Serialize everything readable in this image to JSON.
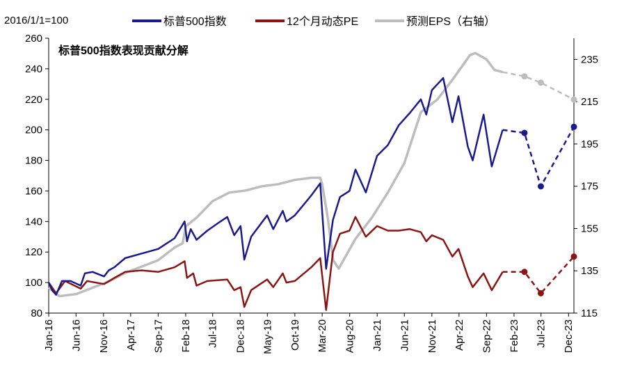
{
  "chart_data": {
    "type": "line",
    "title": "标普500指数表现贡献分解",
    "note": "2016/1/1=100",
    "x_ticks": [
      "Jan-16",
      "Jun-16",
      "Nov-16",
      "Apr-17",
      "Sep-17",
      "Feb-18",
      "Jul-18",
      "Dec-18",
      "May-19",
      "Oct-19",
      "Mar-20",
      "Aug-20",
      "Jan-21",
      "Jun-21",
      "Nov-21",
      "Apr-22",
      "Sep-22",
      "Feb-23",
      "Jul-23",
      "Dec-23"
    ],
    "y_left": {
      "min": 80,
      "max": 260,
      "ticks": [
        80,
        100,
        120,
        140,
        160,
        180,
        200,
        220,
        240,
        260
      ]
    },
    "y_right": {
      "min": 115,
      "max": 245,
      "ticks": [
        115,
        135,
        155,
        175,
        195,
        215,
        235
      ]
    },
    "colors": {
      "sp500": "#1a1a8c",
      "pe": "#8b1414",
      "eps": "#bdbdbd"
    },
    "series": [
      {
        "name": "标普500指数",
        "axis": "left",
        "color": "#1a1a8c",
        "actual": [
          [
            "2016-01-01",
            100
          ],
          [
            "2016-01-20",
            95
          ],
          [
            "2016-02-11",
            92
          ],
          [
            "2016-03-15",
            101
          ],
          [
            "2016-05-01",
            101
          ],
          [
            "2016-06-27",
            98
          ],
          [
            "2016-07-20",
            106
          ],
          [
            "2016-09-01",
            107
          ],
          [
            "2016-11-04",
            104
          ],
          [
            "2016-11-30",
            108
          ],
          [
            "2016-12-31",
            110
          ],
          [
            "2017-03-01",
            116
          ],
          [
            "2017-06-01",
            119
          ],
          [
            "2017-09-01",
            122
          ],
          [
            "2017-12-01",
            129
          ],
          [
            "2018-01-26",
            140
          ],
          [
            "2018-02-08",
            127
          ],
          [
            "2018-03-01",
            135
          ],
          [
            "2018-04-02",
            128
          ],
          [
            "2018-06-01",
            134
          ],
          [
            "2018-08-01",
            139
          ],
          [
            "2018-09-20",
            143
          ],
          [
            "2018-10-29",
            131
          ],
          [
            "2018-12-03",
            137
          ],
          [
            "2018-12-24",
            115
          ],
          [
            "2019-01-31",
            130
          ],
          [
            "2019-04-30",
            144
          ],
          [
            "2019-06-03",
            135
          ],
          [
            "2019-07-26",
            147
          ],
          [
            "2019-08-15",
            140
          ],
          [
            "2019-10-01",
            144
          ],
          [
            "2019-12-31",
            157
          ],
          [
            "2020-02-19",
            165
          ],
          [
            "2020-03-23",
            109
          ],
          [
            "2020-04-30",
            141
          ],
          [
            "2020-06-08",
            156
          ],
          [
            "2020-07-31",
            160
          ],
          [
            "2020-09-02",
            174
          ],
          [
            "2020-10-30",
            159
          ],
          [
            "2020-12-31",
            183
          ],
          [
            "2021-03-01",
            190
          ],
          [
            "2021-05-01",
            203
          ],
          [
            "2021-07-01",
            211
          ],
          [
            "2021-09-01",
            220
          ],
          [
            "2021-10-01",
            210
          ],
          [
            "2021-11-01",
            226
          ],
          [
            "2022-01-03",
            234
          ],
          [
            "2022-02-23",
            205
          ],
          [
            "2022-03-29",
            222
          ],
          [
            "2022-05-20",
            189
          ],
          [
            "2022-06-16",
            180
          ],
          [
            "2022-08-16",
            210
          ],
          [
            "2022-09-30",
            176
          ],
          [
            "2022-11-30",
            200
          ]
        ],
        "forecast": [
          [
            "2022-11-30",
            200
          ],
          [
            "2023-03-31",
            198
          ],
          [
            "2023-06-30",
            163
          ],
          [
            "2023-12-31",
            202
          ]
        ]
      },
      {
        "name": "12个月动态PE",
        "axis": "left",
        "color": "#8b1414",
        "actual": [
          [
            "2016-01-01",
            100
          ],
          [
            "2016-02-11",
            93
          ],
          [
            "2016-04-01",
            101
          ],
          [
            "2016-06-27",
            96
          ],
          [
            "2016-08-01",
            101
          ],
          [
            "2016-11-04",
            99
          ],
          [
            "2016-12-31",
            103
          ],
          [
            "2017-03-01",
            107
          ],
          [
            "2017-06-01",
            108
          ],
          [
            "2017-09-01",
            107
          ],
          [
            "2017-12-01",
            110
          ],
          [
            "2018-01-26",
            114
          ],
          [
            "2018-02-08",
            103
          ],
          [
            "2018-03-15",
            106
          ],
          [
            "2018-04-02",
            98
          ],
          [
            "2018-06-01",
            101
          ],
          [
            "2018-09-20",
            102
          ],
          [
            "2018-10-29",
            95
          ],
          [
            "2018-12-03",
            97
          ],
          [
            "2018-12-24",
            84
          ],
          [
            "2019-01-31",
            95
          ],
          [
            "2019-04-30",
            102
          ],
          [
            "2019-06-03",
            97
          ],
          [
            "2019-07-26",
            106
          ],
          [
            "2019-08-15",
            100
          ],
          [
            "2019-10-01",
            101
          ],
          [
            "2019-12-31",
            110
          ],
          [
            "2020-02-19",
            116
          ],
          [
            "2020-03-23",
            82
          ],
          [
            "2020-04-30",
            120
          ],
          [
            "2020-06-08",
            132
          ],
          [
            "2020-07-31",
            134
          ],
          [
            "2020-09-02",
            143
          ],
          [
            "2020-10-30",
            130
          ],
          [
            "2020-12-31",
            137
          ],
          [
            "2021-03-01",
            134
          ],
          [
            "2021-05-01",
            134
          ],
          [
            "2021-07-01",
            135
          ],
          [
            "2021-09-01",
            133
          ],
          [
            "2021-10-01",
            127
          ],
          [
            "2021-11-01",
            131
          ],
          [
            "2022-01-03",
            128
          ],
          [
            "2022-02-23",
            117
          ],
          [
            "2022-03-29",
            122
          ],
          [
            "2022-05-20",
            104
          ],
          [
            "2022-06-16",
            97
          ],
          [
            "2022-08-16",
            106
          ],
          [
            "2022-09-30",
            95
          ],
          [
            "2022-11-30",
            107
          ]
        ],
        "forecast": [
          [
            "2022-11-30",
            107
          ],
          [
            "2023-03-31",
            107
          ],
          [
            "2023-06-30",
            93
          ],
          [
            "2023-12-31",
            117
          ]
        ]
      },
      {
        "name": "预测EPS（右轴）",
        "axis": "right",
        "color": "#bdbdbd",
        "actual": [
          [
            "2016-01-01",
            127
          ],
          [
            "2016-03-01",
            123
          ],
          [
            "2016-06-01",
            124
          ],
          [
            "2016-09-01",
            127
          ],
          [
            "2016-12-01",
            130
          ],
          [
            "2017-03-01",
            134
          ],
          [
            "2017-06-01",
            137
          ],
          [
            "2017-09-01",
            140
          ],
          [
            "2017-12-01",
            146
          ],
          [
            "2018-01-15",
            148
          ],
          [
            "2018-02-01",
            156
          ],
          [
            "2018-04-01",
            160
          ],
          [
            "2018-07-01",
            168
          ],
          [
            "2018-10-01",
            172
          ],
          [
            "2019-01-01",
            173
          ],
          [
            "2019-04-01",
            175
          ],
          [
            "2019-07-01",
            176
          ],
          [
            "2019-10-01",
            178
          ],
          [
            "2020-01-01",
            179
          ],
          [
            "2020-02-19",
            179
          ],
          [
            "2020-03-01",
            176
          ],
          [
            "2020-04-01",
            160
          ],
          [
            "2020-05-01",
            140
          ],
          [
            "2020-06-01",
            136
          ],
          [
            "2020-09-01",
            150
          ],
          [
            "2020-12-01",
            160
          ],
          [
            "2021-03-01",
            172
          ],
          [
            "2021-06-01",
            186
          ],
          [
            "2021-09-01",
            210
          ],
          [
            "2021-12-01",
            216
          ],
          [
            "2022-03-01",
            226
          ],
          [
            "2022-06-01",
            237
          ],
          [
            "2022-07-01",
            238
          ],
          [
            "2022-09-01",
            235
          ],
          [
            "2022-10-15",
            230
          ],
          [
            "2022-11-30",
            229
          ]
        ],
        "forecast": [
          [
            "2022-11-30",
            229
          ],
          [
            "2023-03-31",
            227
          ],
          [
            "2023-06-30",
            224
          ],
          [
            "2023-12-31",
            216
          ]
        ]
      }
    ]
  }
}
